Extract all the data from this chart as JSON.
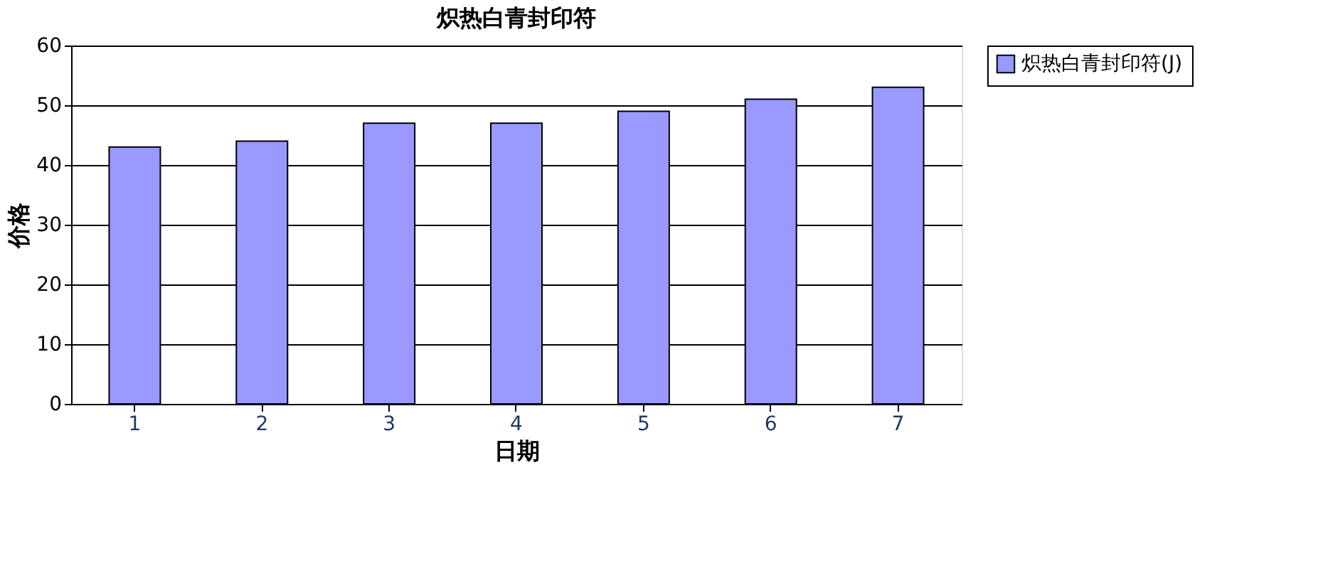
{
  "chart_data": {
    "type": "bar",
    "title": "炽热白青封印符",
    "xlabel": "日期",
    "ylabel": "价格",
    "categories": [
      "1",
      "2",
      "3",
      "4",
      "5",
      "6",
      "7"
    ],
    "series": [
      {
        "name": "炽热白青封印符(J)",
        "color": "#9999ff",
        "values": [
          43,
          44,
          47,
          47,
          49,
          51,
          53
        ]
      }
    ],
    "ylim": [
      0,
      60
    ],
    "yticks": [
      0,
      10,
      20,
      30,
      40,
      50,
      60
    ],
    "grid": "y",
    "legend": "right"
  }
}
